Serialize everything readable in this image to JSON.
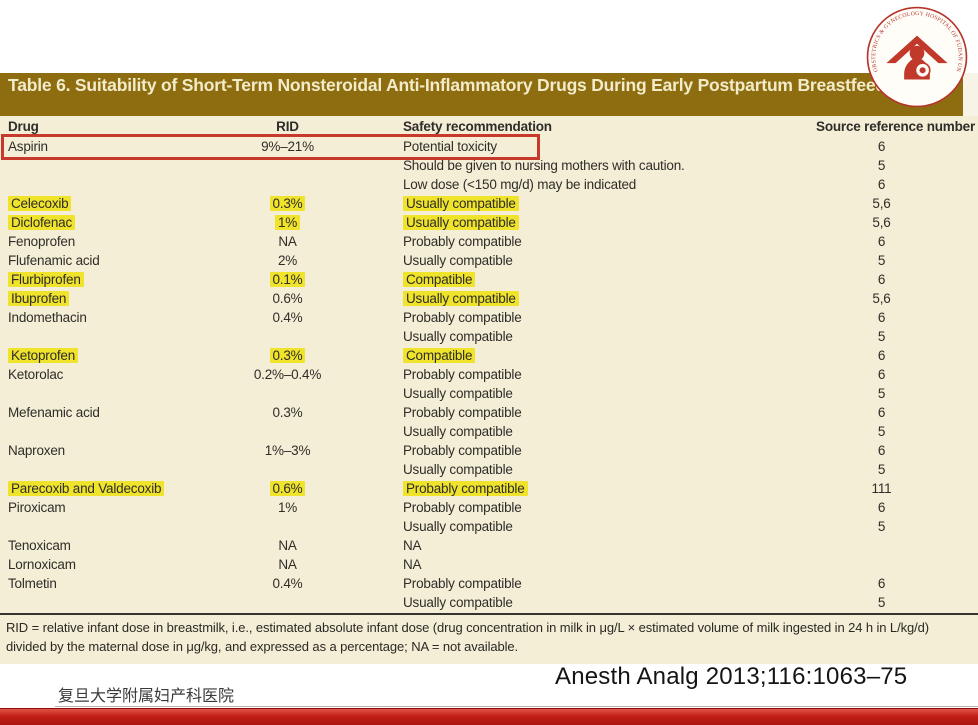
{
  "colors": {
    "title_bar_bg": "#8e6d11",
    "title_text": "#f3ecca",
    "table_bg": "#f4eed6",
    "text": "#2f2d29",
    "highlight": "#efe32c",
    "red_box": "#c6392b",
    "bottom_bar": "#c11d15",
    "logo_red": "#b5342c"
  },
  "logo": {
    "ring_text": "OBSTETRICS & GYNECOLOGY HOSPITAL OF FUDAN UNIVERSITY",
    "symbol": "mother-and-child-under-roof-icon"
  },
  "table": {
    "title": "Table 6.  Suitability of Short-Term Nonsteroidal Anti-Inflammatory Drugs During Early Postpartum Breastfeeding",
    "columns": [
      "Drug",
      "RID",
      "Safety recommendation",
      "Source reference number"
    ],
    "rows": [
      {
        "drug": "Aspirin",
        "rid": "9%–21%",
        "safety": "Potential toxicity",
        "ref": "6",
        "red_box": true
      },
      {
        "drug": "",
        "rid": "",
        "safety": "Should be given to nursing mothers with caution.",
        "ref": "5"
      },
      {
        "drug": "",
        "rid": "",
        "safety": "Low dose (<150 mg/d) may be indicated",
        "ref": "6"
      },
      {
        "drug": "Celecoxib",
        "rid": "0.3%",
        "safety": "Usually compatible",
        "ref": "5,6",
        "hl": [
          "drug",
          "rid",
          "safety"
        ]
      },
      {
        "drug": "Diclofenac",
        "rid": "1%",
        "safety": "Usually compatible",
        "ref": "5,6",
        "hl": [
          "drug",
          "rid",
          "safety"
        ]
      },
      {
        "drug": "Fenoprofen",
        "rid": "NA",
        "safety": "Probably compatible",
        "ref": "6"
      },
      {
        "drug": "Flufenamic acid",
        "rid": "2%",
        "safety": "Usually compatible",
        "ref": "5"
      },
      {
        "drug": "Flurbiprofen",
        "rid": "0.1%",
        "safety": "Compatible",
        "ref": "6",
        "hl": [
          "drug",
          "rid",
          "safety"
        ]
      },
      {
        "drug": "Ibuprofen",
        "rid": "0.6%",
        "safety": "Usually compatible",
        "ref": "5,6",
        "hl": [
          "drug",
          "safety"
        ]
      },
      {
        "drug": "Indomethacin",
        "rid": "0.4%",
        "safety": "Probably compatible",
        "ref": "6"
      },
      {
        "drug": "",
        "rid": "",
        "safety": "Usually compatible",
        "ref": "5"
      },
      {
        "drug": "Ketoprofen",
        "rid": "0.3%",
        "safety": "Compatible",
        "ref": "6",
        "hl": [
          "drug",
          "rid",
          "safety"
        ]
      },
      {
        "drug": "Ketorolac",
        "rid": "0.2%–0.4%",
        "safety": "Probably compatible",
        "ref": "6"
      },
      {
        "drug": "",
        "rid": "",
        "safety": "Usually compatible",
        "ref": "5"
      },
      {
        "drug": "Mefenamic acid",
        "rid": "0.3%",
        "safety": "Probably compatible",
        "ref": "6"
      },
      {
        "drug": "",
        "rid": "",
        "safety": "Usually compatible",
        "ref": "5"
      },
      {
        "drug": "Naproxen",
        "rid": "1%–3%",
        "safety": "Probably compatible",
        "ref": "6"
      },
      {
        "drug": "",
        "rid": "",
        "safety": "Usually compatible",
        "ref": "5"
      },
      {
        "drug": "Parecoxib and Valdecoxib",
        "rid": "0.6%",
        "safety": "Probably compatible",
        "ref": "111",
        "hl": [
          "drug",
          "rid",
          "safety"
        ]
      },
      {
        "drug": "Piroxicam",
        "rid": "1%",
        "safety": "Probably compatible",
        "ref": "6"
      },
      {
        "drug": "",
        "rid": "",
        "safety": "Usually compatible",
        "ref": "5"
      },
      {
        "drug": "Tenoxicam",
        "rid": "NA",
        "safety": "NA",
        "ref": ""
      },
      {
        "drug": "Lornoxicam",
        "rid": "NA",
        "safety": "NA",
        "ref": ""
      },
      {
        "drug": "Tolmetin",
        "rid": "0.4%",
        "safety": "Probably compatible",
        "ref": "6"
      },
      {
        "drug": "",
        "rid": "",
        "safety": "Usually compatible",
        "ref": "5"
      }
    ],
    "footnote": "RID = relative infant dose in breastmilk, i.e., estimated absolute infant dose (drug concentration in milk in μg/L × estimated volume of milk ingested in 24 h in L/kg/d) divided by the maternal dose in μg/kg, and expressed as a percentage; NA = not available."
  },
  "footer": {
    "institution": "复旦大学附属妇产科医院",
    "citation": "Anesth Analg 2013;116:1063–75"
  }
}
